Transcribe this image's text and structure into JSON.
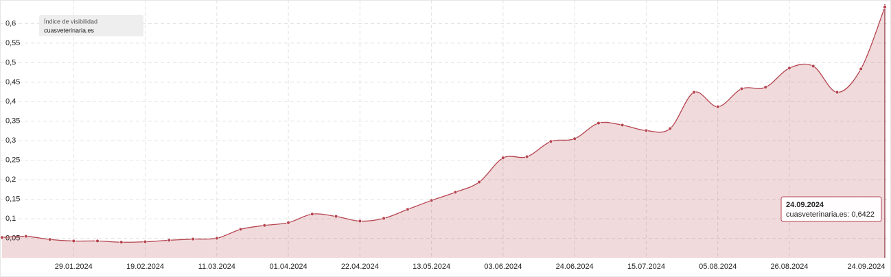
{
  "chart_data": {
    "type": "area",
    "legend_title": "Índice de visibilidad",
    "categories": [
      null,
      null,
      null,
      "29.01.2024",
      null,
      null,
      "19.02.2024",
      null,
      null,
      "11.03.2024",
      null,
      null,
      "01.04.2024",
      null,
      null,
      "22.04.2024",
      null,
      null,
      "13.05.2024",
      null,
      null,
      "03.06.2024",
      null,
      null,
      "24.06.2024",
      null,
      null,
      "15.07.2024",
      null,
      null,
      "05.08.2024",
      null,
      null,
      "26.08.2024",
      null,
      null,
      null,
      "24.09.2024"
    ],
    "series": [
      {
        "name": "cuasveterinaria.es",
        "color": "#b5444f",
        "values": [
          0.052,
          0.055,
          0.047,
          0.043,
          0.043,
          0.04,
          0.041,
          0.045,
          0.048,
          0.05,
          0.073,
          0.083,
          0.09,
          0.112,
          0.106,
          0.094,
          0.101,
          0.124,
          0.147,
          0.168,
          0.194,
          0.256,
          0.259,
          0.298,
          0.305,
          0.345,
          0.34,
          0.326,
          0.331,
          0.424,
          0.387,
          0.433,
          0.437,
          0.486,
          0.491,
          0.424,
          0.484,
          0.6422
        ]
      }
    ],
    "ylim": [
      0,
      0.65
    ],
    "yticks": [
      {
        "value": 0.05,
        "label": "0,05"
      },
      {
        "value": 0.1,
        "label": "0,1"
      },
      {
        "value": 0.15,
        "label": "0,15"
      },
      {
        "value": 0.2,
        "label": "0,2"
      },
      {
        "value": 0.25,
        "label": "0,25"
      },
      {
        "value": 0.3,
        "label": "0,3"
      },
      {
        "value": 0.35,
        "label": "0,35"
      },
      {
        "value": 0.4,
        "label": "0,4"
      },
      {
        "value": 0.45,
        "label": "0,45"
      },
      {
        "value": 0.5,
        "label": "0,5"
      },
      {
        "value": 0.55,
        "label": "0,55"
      },
      {
        "value": 0.6,
        "label": "0,6"
      }
    ],
    "grid": true,
    "tooltip": {
      "title": "24.09.2024",
      "text": "cuasveterinaria.es: 0,6422"
    }
  }
}
